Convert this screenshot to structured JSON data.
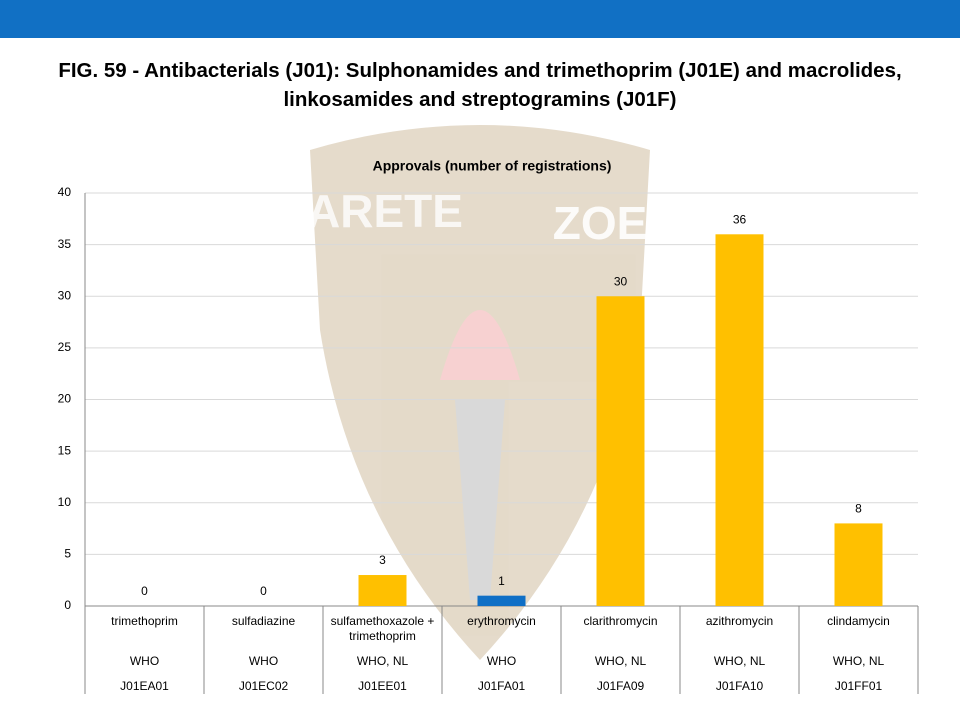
{
  "chart_data": {
    "type": "bar",
    "title": "FIG. 59 - Antibacterials (J01): Sulphonamides and trimethoprim (J01E) and macrolides, linkosamides and streptogramins (J01F)",
    "subtitle": "Approvals (number of registrations)",
    "watermark": [
      "ARETE",
      "ZOE"
    ],
    "categories": [
      "trimethoprim",
      "sulfadiazine",
      "sulfamethoxazole + trimethoprim",
      "erythromycin",
      "clarithromycin",
      "azithromycin",
      "clindamycin"
    ],
    "category_groups": [
      "WHO",
      "WHO",
      "WHO, NL",
      "WHO",
      "WHO, NL",
      "WHO, NL",
      "WHO, NL"
    ],
    "category_codes": [
      "J01EA01",
      "J01EC02",
      "J01EE01",
      "J01FA01",
      "J01FA09",
      "J01FA10",
      "J01FF01"
    ],
    "values": [
      0,
      0,
      3,
      1,
      30,
      36,
      8
    ],
    "colors": [
      "#ffc000",
      "#ffc000",
      "#ffc000",
      "#0f6fc6",
      "#ffc000",
      "#ffc000",
      "#ffc000"
    ],
    "ylim": [
      0,
      40
    ],
    "yticks": [
      0,
      5,
      10,
      15,
      20,
      25,
      30,
      35,
      40
    ],
    "grid": true
  }
}
